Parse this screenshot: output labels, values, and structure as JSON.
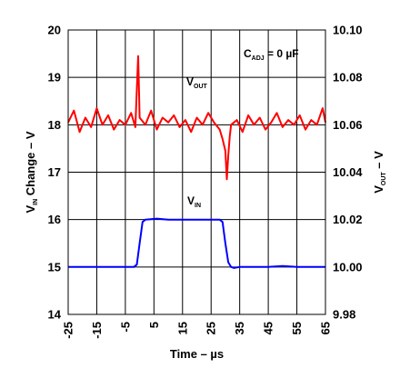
{
  "chart_data": {
    "type": "line",
    "xlabel": "Time – µs",
    "ylabel_left": {
      "main": "V",
      "sub": "IN",
      "rest": " Change – V"
    },
    "ylabel_right": {
      "main": "V",
      "sub": "OUT",
      "rest": " – V"
    },
    "annotation": {
      "main": "C",
      "sub": "ADJ",
      "rest": " = 0 µF"
    },
    "xlim": [
      -25,
      65
    ],
    "ylim_left": [
      14,
      20
    ],
    "ylim_right": [
      9.98,
      10.1
    ],
    "grid": true,
    "x_ticks": [
      "-25",
      "-15",
      "-5",
      "5",
      "15",
      "25",
      "35",
      "45",
      "55",
      "65"
    ],
    "y_left_ticks": [
      "14",
      "15",
      "16",
      "17",
      "18",
      "19",
      "20"
    ],
    "y_right_ticks": [
      "9.98",
      "10.00",
      "10.02",
      "10.04",
      "10.06",
      "10.08",
      "10.10"
    ],
    "series": [
      {
        "name": {
          "main": "V",
          "sub": "OUT"
        },
        "axis": "right",
        "color": "#ff0000",
        "x": [
          -25,
          -23,
          -21,
          -19,
          -17,
          -15,
          -13,
          -11,
          -9,
          -7,
          -5,
          -3,
          -1.5,
          -1,
          -0.5,
          0,
          2,
          4,
          6,
          8,
          10,
          12,
          14,
          16,
          18,
          20,
          22,
          24,
          26,
          28,
          29,
          30,
          30.5,
          31,
          31.5,
          32,
          34,
          36,
          38,
          40,
          42,
          44,
          46,
          48,
          50,
          52,
          54,
          56,
          58,
          60,
          62,
          64,
          65
        ],
        "y": [
          10.061,
          10.066,
          10.057,
          10.063,
          10.059,
          10.067,
          10.06,
          10.064,
          10.058,
          10.062,
          10.06,
          10.065,
          10.059,
          10.075,
          10.089,
          10.063,
          10.06,
          10.066,
          10.058,
          10.063,
          10.061,
          10.064,
          10.059,
          10.062,
          10.057,
          10.063,
          10.06,
          10.065,
          10.061,
          10.058,
          10.054,
          10.049,
          10.037,
          10.047,
          10.055,
          10.06,
          10.062,
          10.057,
          10.064,
          10.06,
          10.063,
          10.058,
          10.061,
          10.065,
          10.059,
          10.062,
          10.06,
          10.064,
          10.058,
          10.062,
          10.06,
          10.067,
          10.061
        ]
      },
      {
        "name": {
          "main": "V",
          "sub": "IN"
        },
        "axis": "left",
        "color": "#0000ff",
        "x": [
          -25,
          -2,
          -1,
          0,
          1,
          2,
          6,
          10,
          15,
          20,
          25,
          28,
          29,
          30,
          31,
          32,
          33,
          35,
          40,
          45,
          50,
          55,
          60,
          65
        ],
        "y": [
          15.0,
          15.0,
          15.05,
          15.5,
          15.95,
          16.0,
          16.02,
          16.0,
          16.0,
          16.0,
          16.0,
          16.0,
          15.95,
          15.5,
          15.1,
          15.0,
          14.98,
          15.0,
          15.0,
          15.0,
          15.02,
          15.0,
          15.0,
          15.0
        ]
      }
    ]
  }
}
